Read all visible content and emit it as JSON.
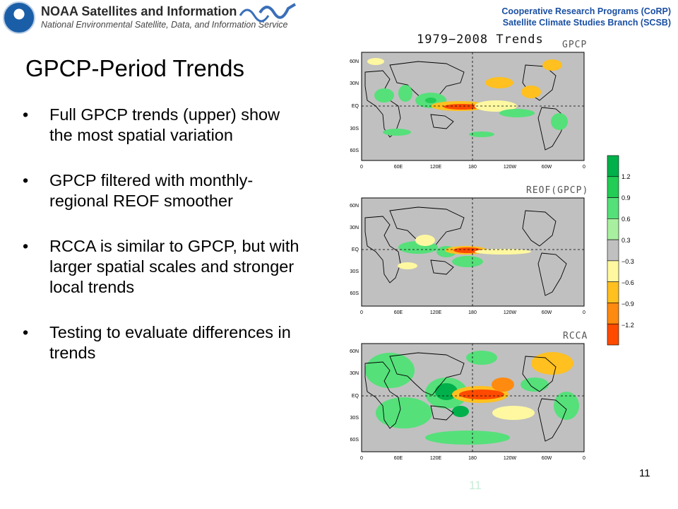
{
  "header": {
    "org_title": "NOAA Satellites and Information",
    "org_subtitle": "National Environmental Satellite, Data, and Information Service",
    "program_line1": "Cooperative Research Programs (CoRP)",
    "program_line2": "Satellite Climate Studies Branch (SCSB)"
  },
  "slide": {
    "title": "GPCP-Period Trends",
    "bullets": [
      "Full GPCP trends (upper) show the most spatial variation",
      "GPCP filtered with monthly-regional REOF smoother",
      "RCCA is similar to GPCP, but with larger spatial scales and stronger local trends",
      "Testing to evaluate differences in trends"
    ],
    "page_number": "11",
    "ghost_number": "11"
  },
  "figure": {
    "title": "1979−2008 Trends",
    "panels": [
      "GPCP",
      "REOF(GPCP)",
      "RCCA"
    ],
    "lat_labels": [
      "60N",
      "30N",
      "EQ",
      "30S",
      "60S"
    ],
    "lon_labels": [
      "0",
      "60E",
      "120E",
      "180",
      "120W",
      "60W",
      "0"
    ],
    "colorbar_labels": [
      "1.2",
      "0.9",
      "0.6",
      "0.3",
      "−0.3",
      "−0.6",
      "−0.9",
      "−1.2"
    ],
    "colorbar_colors": [
      "#00b04a",
      "#22cc55",
      "#55e07a",
      "#a8f0a0",
      "#c0c0c0",
      "#fff8a0",
      "#ffc020",
      "#ff8a10",
      "#ff4a00"
    ]
  }
}
